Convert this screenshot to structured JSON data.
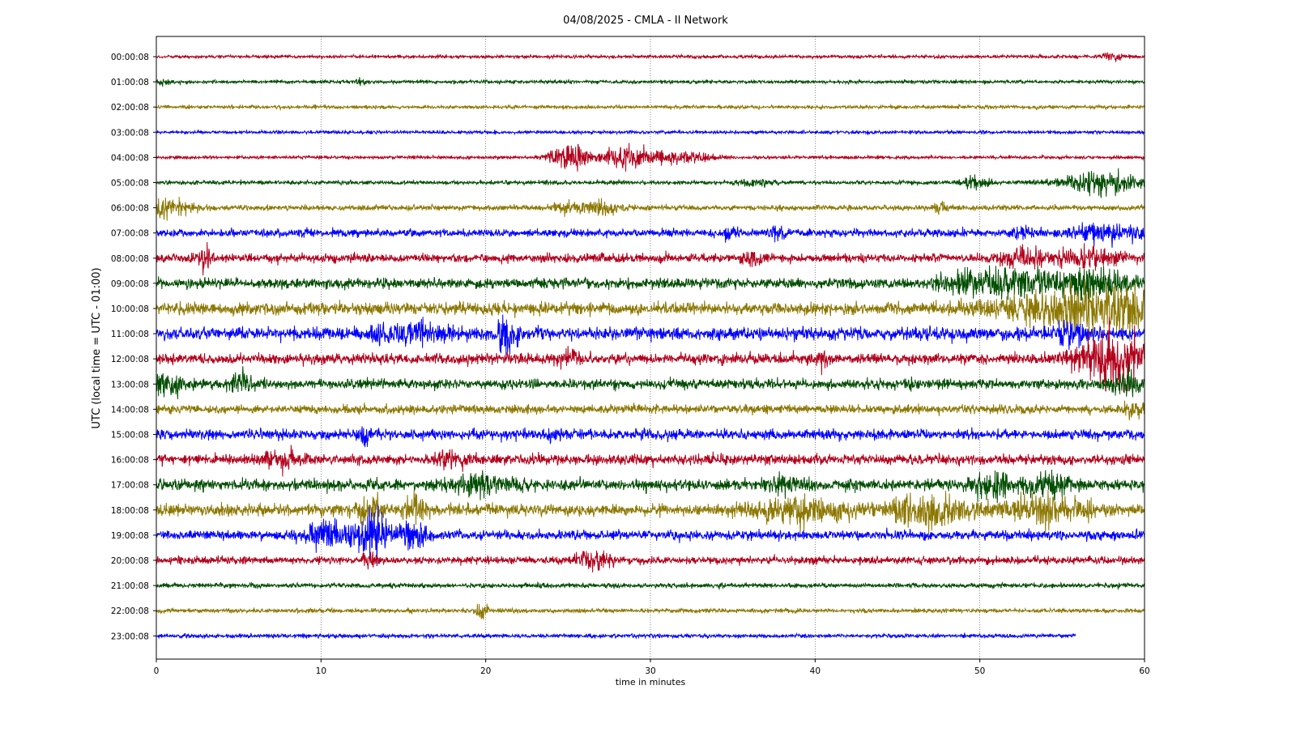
{
  "chart_data": {
    "type": "line",
    "title": "04/08/2025 - CMLA - II Network",
    "xlabel": "time in minutes",
    "ylabel": "UTC (local time = UTC - 01:00)",
    "xlim": [
      0,
      60
    ],
    "x_ticks": [
      "0",
      "10",
      "20",
      "30",
      "40",
      "50",
      "60"
    ],
    "grid": "vertical dotted lines at 10-minute intervals",
    "rows": [
      {
        "label": "00:00:08",
        "color": "#b2001b",
        "amp": 0.12,
        "events": [
          {
            "t": 57.9,
            "a": 0.35,
            "d": 0.4
          },
          {
            "t": 58.5,
            "a": 0.2,
            "d": 0.3
          }
        ]
      },
      {
        "label": "01:00:08",
        "color": "#004d00",
        "amp": 0.13,
        "events": [
          {
            "t": 0.5,
            "a": 0.3,
            "d": 0.3
          },
          {
            "t": 12.3,
            "a": 0.25,
            "d": 0.3
          }
        ]
      },
      {
        "label": "02:00:08",
        "color": "#8c7700",
        "amp": 0.13,
        "events": []
      },
      {
        "label": "03:00:08",
        "color": "#0000ff",
        "amp": 0.12,
        "events": []
      },
      {
        "label": "04:00:08",
        "color": "#b2001b",
        "amp": 0.12,
        "events": [
          {
            "t": 25.0,
            "a": 0.9,
            "d": 1.2
          },
          {
            "t": 29.0,
            "a": 0.75,
            "d": 2.2
          },
          {
            "t": 32.5,
            "a": 0.3,
            "d": 1.5
          }
        ]
      },
      {
        "label": "05:00:08",
        "color": "#004d00",
        "amp": 0.15,
        "events": [
          {
            "t": 36.5,
            "a": 0.3,
            "d": 1.0
          },
          {
            "t": 49.8,
            "a": 0.45,
            "d": 0.8
          },
          {
            "t": 57.5,
            "a": 0.85,
            "d": 2.5
          }
        ]
      },
      {
        "label": "06:00:08",
        "color": "#8c7700",
        "amp": 0.2,
        "events": [
          {
            "t": 0.8,
            "a": 0.85,
            "d": 1.2
          },
          {
            "t": 25.0,
            "a": 0.5,
            "d": 0.8
          },
          {
            "t": 27.2,
            "a": 0.6,
            "d": 1.0
          },
          {
            "t": 47.6,
            "a": 0.45,
            "d": 0.3
          }
        ]
      },
      {
        "label": "07:00:08",
        "color": "#0000ff",
        "amp": 0.3,
        "events": [
          {
            "t": 34.7,
            "a": 0.4,
            "d": 0.4
          },
          {
            "t": 37.8,
            "a": 0.55,
            "d": 0.4
          },
          {
            "t": 52.5,
            "a": 0.45,
            "d": 0.4
          },
          {
            "t": 57.8,
            "a": 0.6,
            "d": 2.0
          }
        ]
      },
      {
        "label": "08:00:08",
        "color": "#b2001b",
        "amp": 0.33,
        "events": [
          {
            "t": 3.0,
            "a": 1.3,
            "d": 0.3
          },
          {
            "t": 36.3,
            "a": 0.6,
            "d": 0.6
          },
          {
            "t": 52.6,
            "a": 0.55,
            "d": 1.5
          },
          {
            "t": 56.5,
            "a": 0.6,
            "d": 2.0
          }
        ]
      },
      {
        "label": "09:00:08",
        "color": "#004d00",
        "amp": 0.38,
        "events": [
          {
            "t": 49.0,
            "a": 0.7,
            "d": 1.5
          },
          {
            "t": 52.0,
            "a": 1.1,
            "d": 1.5
          },
          {
            "t": 56.5,
            "a": 1.0,
            "d": 2.5
          }
        ]
      },
      {
        "label": "10:00:08",
        "color": "#8c7700",
        "amp": 0.45,
        "events": [
          {
            "t": 54.5,
            "a": 1.2,
            "d": 3.5
          },
          {
            "t": 58.5,
            "a": 1.6,
            "d": 2.0
          }
        ]
      },
      {
        "label": "11:00:08",
        "color": "#0000ff",
        "amp": 0.48,
        "events": [
          {
            "t": 21.3,
            "a": 1.5,
            "d": 0.6
          },
          {
            "t": 15.5,
            "a": 0.6,
            "d": 2.0
          },
          {
            "t": 55.5,
            "a": 0.7,
            "d": 1.0
          }
        ]
      },
      {
        "label": "12:00:08",
        "color": "#b2001b",
        "amp": 0.4,
        "events": [
          {
            "t": 40.5,
            "a": 0.65,
            "d": 0.4
          },
          {
            "t": 25.0,
            "a": 0.6,
            "d": 0.8
          },
          {
            "t": 58.0,
            "a": 2.2,
            "d": 2.0
          }
        ]
      },
      {
        "label": "13:00:08",
        "color": "#004d00",
        "amp": 0.38,
        "events": [
          {
            "t": 0.5,
            "a": 1.0,
            "d": 1.0
          },
          {
            "t": 5.2,
            "a": 0.7,
            "d": 0.6
          },
          {
            "t": 59.0,
            "a": 0.9,
            "d": 1.0
          }
        ]
      },
      {
        "label": "14:00:08",
        "color": "#8c7700",
        "amp": 0.33,
        "events": [
          {
            "t": 59.5,
            "a": 0.5,
            "d": 0.8
          }
        ]
      },
      {
        "label": "15:00:08",
        "color": "#0000ff",
        "amp": 0.38,
        "events": [
          {
            "t": 12.8,
            "a": 0.55,
            "d": 0.5
          },
          {
            "t": 24.0,
            "a": 0.5,
            "d": 0.5
          }
        ]
      },
      {
        "label": "16:00:08",
        "color": "#b2001b",
        "amp": 0.4,
        "events": [
          {
            "t": 7.5,
            "a": 0.6,
            "d": 1.0
          },
          {
            "t": 18.0,
            "a": 0.5,
            "d": 1.0
          }
        ]
      },
      {
        "label": "17:00:08",
        "color": "#004d00",
        "amp": 0.42,
        "events": [
          {
            "t": 19.5,
            "a": 0.6,
            "d": 2.0
          },
          {
            "t": 38.0,
            "a": 0.55,
            "d": 1.0
          },
          {
            "t": 50.6,
            "a": 1.2,
            "d": 1.0
          },
          {
            "t": 54.0,
            "a": 0.8,
            "d": 1.5
          }
        ]
      },
      {
        "label": "18:00:08",
        "color": "#8c7700",
        "amp": 0.45,
        "events": [
          {
            "t": 12.9,
            "a": 1.2,
            "d": 0.6
          },
          {
            "t": 15.6,
            "a": 0.9,
            "d": 0.6
          },
          {
            "t": 39.0,
            "a": 0.9,
            "d": 2.5
          },
          {
            "t": 47.0,
            "a": 1.0,
            "d": 2.5
          },
          {
            "t": 54.0,
            "a": 0.9,
            "d": 2.5
          }
        ]
      },
      {
        "label": "19:00:08",
        "color": "#0000ff",
        "amp": 0.35,
        "events": [
          {
            "t": 10.5,
            "a": 0.9,
            "d": 1.5
          },
          {
            "t": 13.2,
            "a": 2.0,
            "d": 0.9
          },
          {
            "t": 15.6,
            "a": 1.4,
            "d": 0.8
          }
        ]
      },
      {
        "label": "20:00:08",
        "color": "#b2001b",
        "amp": 0.28,
        "events": [
          {
            "t": 26.5,
            "a": 0.8,
            "d": 1.0
          },
          {
            "t": 13.0,
            "a": 0.6,
            "d": 0.4
          }
        ]
      },
      {
        "label": "21:00:08",
        "color": "#004d00",
        "amp": 0.18,
        "events": []
      },
      {
        "label": "22:00:08",
        "color": "#8c7700",
        "amp": 0.16,
        "events": [
          {
            "t": 19.8,
            "a": 0.9,
            "d": 0.3
          }
        ]
      },
      {
        "label": "23:00:08",
        "color": "#0000ff",
        "amp": 0.15,
        "end": 55.8,
        "events": []
      }
    ]
  }
}
